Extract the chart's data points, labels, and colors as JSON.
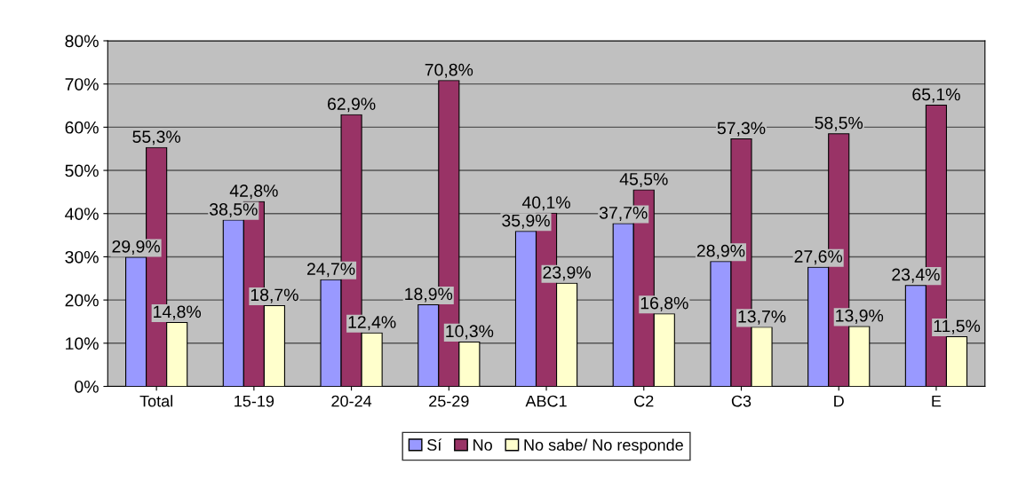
{
  "chart_data": {
    "type": "bar",
    "categories": [
      "Total",
      "15-19",
      "20-24",
      "25-29",
      "ABC1",
      "C2",
      "C3",
      "D",
      "E"
    ],
    "series": [
      {
        "name": "Sí",
        "color": "#9999ff",
        "values": [
          29.9,
          38.5,
          24.7,
          18.9,
          35.9,
          37.7,
          28.9,
          27.6,
          23.4
        ],
        "value_labels": [
          "29,9%",
          "38,5%",
          "24,7%",
          "18,9%",
          "35,9%",
          "37,7%",
          "28,9%",
          "27,6%",
          "23,4%"
        ]
      },
      {
        "name": "No",
        "color": "#993366",
        "values": [
          55.3,
          42.8,
          62.9,
          70.8,
          40.1,
          45.5,
          57.3,
          58.5,
          65.1
        ],
        "value_labels": [
          "55,3%",
          "42,8%",
          "62,9%",
          "70,8%",
          "40,1%",
          "45,5%",
          "57,3%",
          "58,5%",
          "65,1%"
        ]
      },
      {
        "name": "No sabe/ No responde",
        "color": "#ffffcc",
        "values": [
          14.8,
          18.7,
          12.4,
          10.3,
          23.9,
          16.8,
          13.7,
          13.9,
          11.5
        ],
        "value_labels": [
          "14,8%",
          "18,7%",
          "12,4%",
          "10,3%",
          "23,9%",
          "16,8%",
          "13,7%",
          "13,9%",
          "11,5%"
        ]
      }
    ],
    "ylim": [
      0,
      80
    ],
    "yticks": [
      {
        "value": 0,
        "label": "0%"
      },
      {
        "value": 10,
        "label": "10%"
      },
      {
        "value": 20,
        "label": "20%"
      },
      {
        "value": 30,
        "label": "30%"
      },
      {
        "value": 40,
        "label": "40%"
      },
      {
        "value": 50,
        "label": "50%"
      },
      {
        "value": 60,
        "label": "60%"
      },
      {
        "value": 70,
        "label": "70%"
      },
      {
        "value": 80,
        "label": "80%"
      }
    ],
    "grid": "y",
    "legend": "bottom"
  }
}
